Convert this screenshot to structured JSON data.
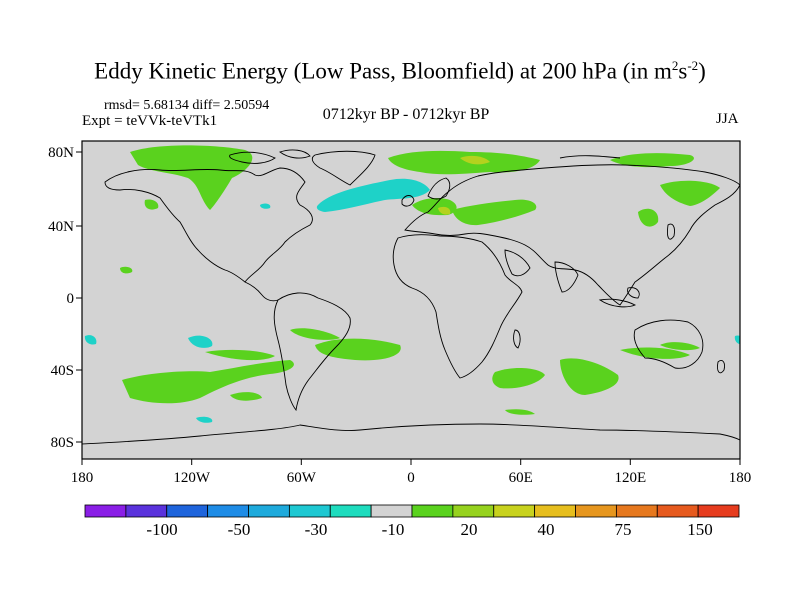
{
  "header": {
    "title_main": "Eddy Kinetic Energy (Low Pass, Bloomfield) at 200 hPa (in m",
    "title_sup1": "2",
    "title_mid": "s",
    "title_sup2": "-2",
    "title_end": ")",
    "stats": "rmsd= 5.68134 diff= 2.50594",
    "expt": "Expt = teVVk-teVTk1",
    "period": "0712kyr BP - 0712kyr BP",
    "season": "JJA"
  },
  "map": {
    "lat_labels": [
      "80N",
      "40N",
      "0",
      "40S",
      "80S"
    ],
    "lon_labels": [
      "180",
      "120W",
      "60W",
      "0",
      "60E",
      "120E",
      "180"
    ],
    "background_color": "#d3d3d3"
  },
  "colorbar": {
    "colors": [
      "#8a1ee6",
      "#5a32dc",
      "#1e64dc",
      "#1e8ce6",
      "#1eaadc",
      "#1ec8d2",
      "#1edcbe",
      "#d3d3d3",
      "#5ad21e",
      "#96d21e",
      "#c8d21e",
      "#e6be1e",
      "#e6961e",
      "#e6781e",
      "#e65a1e",
      "#e63c1e"
    ],
    "labels": [
      "-100",
      "-50",
      "-30",
      "-10",
      "20",
      "40",
      "75",
      "150"
    ]
  },
  "colors": {
    "green": "#5ad21e",
    "cyan": "#1ed2c8",
    "yellowgreen": "#b4d21e"
  }
}
